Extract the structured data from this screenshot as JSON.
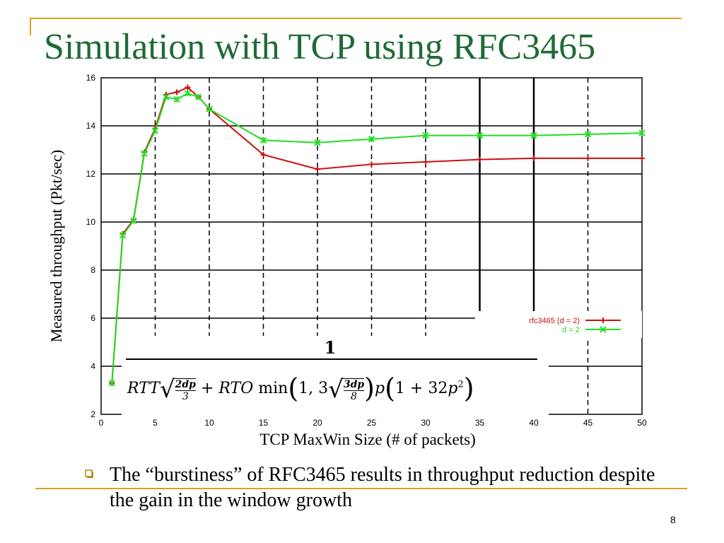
{
  "slide": {
    "title": "Simulation with TCP using RFC3465",
    "bullet": "The “burstiness” of RFC3465 results in throughput reduction despite the gain in the window growth",
    "page_number": "8"
  },
  "colors": {
    "title": "#1e6b34",
    "accent_line": "#d8a31c",
    "series_red": "#cc1111",
    "series_green": "#22dd22"
  },
  "formula": {
    "numerator": "1",
    "denominator": "RTT √(2dp/3) + RTO min(1, 3√(3dp/8)) p(1 + 32p²)"
  },
  "chart_data": {
    "type": "line",
    "xlabel": "TCP MaxWin Size (# of packets)",
    "ylabel": "Measured throughput (Pkt/sec)",
    "xlim": [
      0,
      50
    ],
    "ylim": [
      2,
      16
    ],
    "x_ticks": [
      0,
      5,
      10,
      15,
      20,
      25,
      30,
      35,
      40,
      45,
      50
    ],
    "y_ticks": [
      2,
      4,
      6,
      8,
      10,
      12,
      14,
      16
    ],
    "grid": true,
    "legend_position": "right",
    "series": [
      {
        "name": "rfc3465 (d = 2)",
        "color": "#cc1111",
        "marker": "+",
        "x": [
          1,
          2,
          3,
          4,
          5,
          6,
          7,
          8,
          9,
          10,
          15,
          20,
          25,
          30,
          35,
          40,
          45,
          50
        ],
        "y": [
          3.3,
          9.5,
          10.1,
          12.9,
          13.9,
          15.3,
          15.4,
          15.6,
          15.2,
          14.7,
          12.8,
          12.2,
          12.4,
          12.5,
          12.6,
          12.65,
          12.65,
          12.65
        ]
      },
      {
        "name": "d = 2",
        "color": "#22dd22",
        "marker": "x",
        "x": [
          1,
          2,
          3,
          4,
          5,
          6,
          7,
          8,
          9,
          10,
          15,
          20,
          25,
          30,
          35,
          40,
          45,
          50
        ],
        "y": [
          3.3,
          9.45,
          10.05,
          12.85,
          13.8,
          15.2,
          15.1,
          15.35,
          15.2,
          14.7,
          13.4,
          13.3,
          13.45,
          13.6,
          13.6,
          13.6,
          13.65,
          13.7
        ]
      }
    ]
  }
}
